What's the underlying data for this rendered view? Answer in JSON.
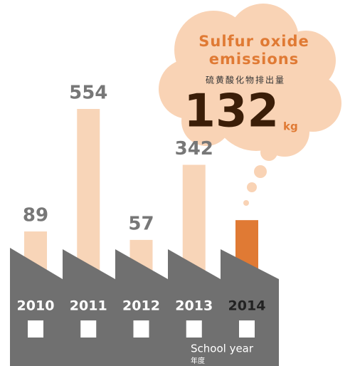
{
  "chart_data": {
    "type": "bar",
    "title": "Sulfur oxide emissions",
    "subtitle": "硫黄酸化物排出量",
    "unit": "kg",
    "categories": [
      "2010",
      "2011",
      "2012",
      "2013",
      "2014"
    ],
    "values": [
      89,
      554,
      57,
      342,
      132
    ],
    "colors": [
      "#f8d5b8",
      "#f8d5b8",
      "#f8d5b8",
      "#f8d5b8",
      "#e07a34"
    ],
    "x_label": "School year",
    "x_label_ja": "年度"
  }
}
